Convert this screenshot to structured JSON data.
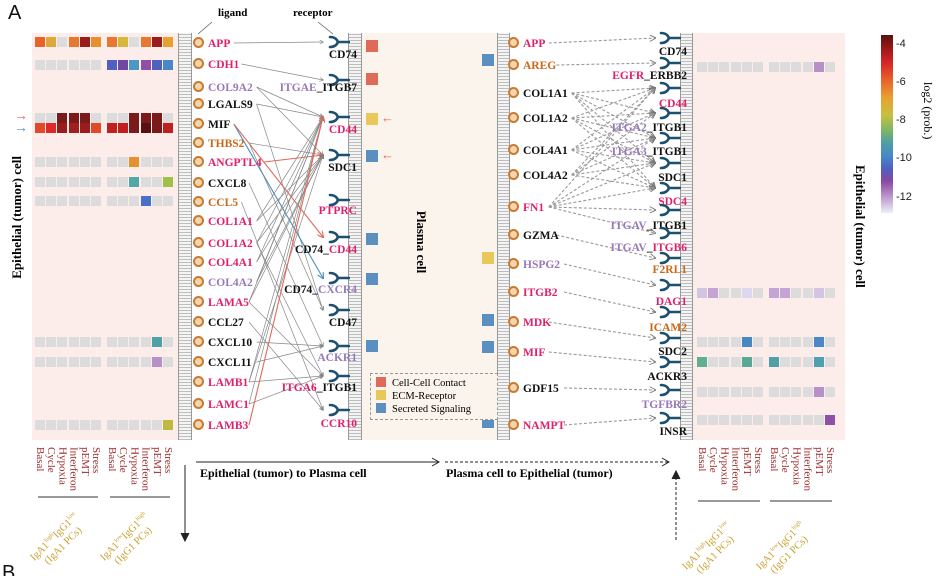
{
  "panel_labels": {
    "a": "A",
    "b": "B"
  },
  "headers": {
    "ligand": "ligand",
    "receptor": "receptor"
  },
  "titles": {
    "left_cell": "Epithelial (tumor) cell",
    "right_cell": "Epithelial (tumor) cell",
    "plasma": "Plasma cell",
    "dir_left": "Epithelial (tumor)  to  Plasma cell",
    "dir_right": "Plasma cell  to  Epithelial (tumor)"
  },
  "colors": {
    "red": "#e0206a",
    "purple": "#9878b8",
    "orange": "#c86818",
    "black": "#111111",
    "contact": "#e06a58",
    "ecm": "#e8c85a",
    "secreted": "#5a8fc0",
    "receptor_icon": "#1d4f6e"
  },
  "legend": [
    {
      "label": "Cell-Cell Contact",
      "color": "#e06a58"
    },
    {
      "label": "ECM-Receptor",
      "color": "#e8c85a"
    },
    {
      "label": "Secreted Signaling",
      "color": "#5a8fc0"
    }
  ],
  "colorbar": {
    "title": "log2 (prob.)",
    "ticks": [
      "-4",
      "-6",
      "-8",
      "-10",
      "-12"
    ],
    "range": [
      -3.5,
      -12.8
    ]
  },
  "columns": [
    "Basal",
    "Cycle",
    "Hypoxia",
    "Interferon",
    "pEMT",
    "Stress"
  ],
  "groups": [
    {
      "main": "IgA1",
      "sup1": "high",
      "mid": "IgG1",
      "sup2": "low",
      "sub": "(IgA1 PCs)"
    },
    {
      "main": "IgA1",
      "sup1": "low",
      "mid": "IgG1",
      "sup2": "high",
      "sub": "(IgG1 PCs)"
    }
  ],
  "left": {
    "ligands": [
      {
        "t": "APP",
        "c": "red"
      },
      {
        "t": "CDH1",
        "c": "red"
      },
      {
        "t": "COL9A2",
        "c": "purple"
      },
      {
        "t": "LGALS9",
        "c": "black"
      },
      {
        "t": "MIF",
        "c": "black"
      },
      {
        "t": "THBS2",
        "c": "orange"
      },
      {
        "t": "ANGPTL4",
        "c": "red"
      },
      {
        "t": "CXCL8",
        "c": "black"
      },
      {
        "t": "CCL5",
        "c": "orange"
      },
      {
        "t": "COL1A1",
        "c": "red"
      },
      {
        "t": "COL1A2",
        "c": "red"
      },
      {
        "t": "COL4A1",
        "c": "red"
      },
      {
        "t": "COL4A2",
        "c": "purple"
      },
      {
        "t": "LAMA5",
        "c": "red"
      },
      {
        "t": "CCL27",
        "c": "black"
      },
      {
        "t": "CXCL10",
        "c": "black"
      },
      {
        "t": "CXCL11",
        "c": "black"
      },
      {
        "t": "LAMB1",
        "c": "red"
      },
      {
        "t": "LAMC1",
        "c": "red"
      },
      {
        "t": "LAMB3",
        "c": "red"
      }
    ],
    "receptors": [
      [
        {
          "t": "CD74",
          "c": "black"
        }
      ],
      [
        {
          "t": "ITGAE",
          "c": "purple"
        },
        {
          "t": "_ITGB7",
          "c": "black"
        }
      ],
      [
        {
          "t": "CD44",
          "c": "red"
        }
      ],
      [
        {
          "t": "SDC1",
          "c": "black"
        }
      ],
      [
        {
          "t": "PTPRC",
          "c": "red"
        }
      ],
      [
        {
          "t": "CD74_",
          "c": "black"
        },
        {
          "t": "CD44",
          "c": "red"
        }
      ],
      [
        {
          "t": "CD74_",
          "c": "black"
        },
        {
          "t": "CXCR4",
          "c": "purple"
        }
      ],
      [
        {
          "t": "CD47",
          "c": "black"
        }
      ],
      [
        {
          "t": "ACKR1",
          "c": "purple"
        }
      ],
      [
        {
          "t": "ITGA6",
          "c": "red"
        },
        {
          "t": "_ITGB1",
          "c": "black"
        }
      ],
      [
        {
          "t": "CCR10",
          "c": "red"
        }
      ]
    ],
    "links": [
      [
        0,
        0,
        "g"
      ],
      [
        1,
        1,
        "g"
      ],
      [
        2,
        2,
        "g"
      ],
      [
        2,
        3,
        "g"
      ],
      [
        3,
        2,
        "g"
      ],
      [
        3,
        7,
        "g"
      ],
      [
        4,
        6,
        "b"
      ],
      [
        4,
        5,
        "r"
      ],
      [
        5,
        3,
        "g"
      ],
      [
        5,
        7,
        "g"
      ],
      [
        6,
        3,
        "r"
      ],
      [
        7,
        8,
        "g"
      ],
      [
        8,
        10,
        "g"
      ],
      [
        9,
        2,
        "g"
      ],
      [
        9,
        3,
        "g"
      ],
      [
        10,
        2,
        "g"
      ],
      [
        10,
        3,
        "g"
      ],
      [
        10,
        9,
        "g"
      ],
      [
        11,
        2,
        "g"
      ],
      [
        11,
        3,
        "g"
      ],
      [
        12,
        2,
        "g"
      ],
      [
        12,
        3,
        "g"
      ],
      [
        13,
        2,
        "g"
      ],
      [
        13,
        3,
        "g"
      ],
      [
        13,
        9,
        "g"
      ],
      [
        14,
        10,
        "g"
      ],
      [
        15,
        8,
        "g"
      ],
      [
        16,
        8,
        "g"
      ],
      [
        17,
        2,
        "g"
      ],
      [
        17,
        3,
        "g"
      ],
      [
        17,
        9,
        "g"
      ],
      [
        18,
        2,
        "g"
      ],
      [
        18,
        9,
        "g"
      ],
      [
        19,
        2,
        "r"
      ]
    ],
    "plasma_types": [
      "contact",
      "contact",
      "ecm",
      "secreted",
      "secreted",
      "secreted",
      "secreted"
    ],
    "highlight_arrows": 2
  },
  "right": {
    "ligands": [
      {
        "t": "APP",
        "c": "red"
      },
      {
        "t": "AREG",
        "c": "orange"
      },
      {
        "t": "COL1A1",
        "c": "black"
      },
      {
        "t": "COL1A2",
        "c": "black"
      },
      {
        "t": "COL4A1",
        "c": "black"
      },
      {
        "t": "COL4A2",
        "c": "black"
      },
      {
        "t": "FN1",
        "c": "red"
      },
      {
        "t": "GZMA",
        "c": "black"
      },
      {
        "t": "HSPG2",
        "c": "purple"
      },
      {
        "t": "ITGB2",
        "c": "red"
      },
      {
        "t": "MDK",
        "c": "red"
      },
      {
        "t": "MIF",
        "c": "red"
      },
      {
        "t": "GDF15",
        "c": "black"
      },
      {
        "t": "NAMPT",
        "c": "red"
      }
    ],
    "receptors": [
      [
        {
          "t": "CD74",
          "c": "black"
        }
      ],
      [
        {
          "t": "EGFR",
          "c": "red"
        },
        {
          "t": "_ERBB2",
          "c": "black"
        }
      ],
      [
        {
          "t": "CD44",
          "c": "red"
        }
      ],
      [
        {
          "t": "ITGA2",
          "c": "purple"
        },
        {
          "t": "_ITGB1",
          "c": "black"
        }
      ],
      [
        {
          "t": "ITGA3",
          "c": "purple"
        },
        {
          "t": "_ITGB1",
          "c": "black"
        }
      ],
      [
        {
          "t": "SDC1",
          "c": "black"
        }
      ],
      [
        {
          "t": "SDC4",
          "c": "red"
        }
      ],
      [
        {
          "t": "ITGAV",
          "c": "purple"
        },
        {
          "t": "_ITGB1",
          "c": "black"
        }
      ],
      [
        {
          "t": "ITGAV",
          "c": "purple"
        },
        {
          "t": "_",
          "c": "black"
        },
        {
          "t": "ITGB6",
          "c": "red"
        }
      ],
      [
        {
          "t": "F2RL1",
          "c": "orange"
        }
      ],
      [
        {
          "t": "DAG1",
          "c": "red"
        }
      ],
      [
        {
          "t": "ICAM2",
          "c": "orange"
        }
      ],
      [
        {
          "t": "SDC2",
          "c": "black"
        }
      ],
      [
        {
          "t": "ACKR3",
          "c": "black"
        }
      ],
      [
        {
          "t": "TGFBR2",
          "c": "purple"
        }
      ],
      [
        {
          "t": "INSR",
          "c": "black"
        }
      ]
    ],
    "links": [
      [
        0,
        0
      ],
      [
        1,
        1
      ],
      [
        2,
        2
      ],
      [
        2,
        3
      ],
      [
        2,
        4
      ],
      [
        2,
        5
      ],
      [
        2,
        6
      ],
      [
        3,
        2
      ],
      [
        3,
        3
      ],
      [
        3,
        4
      ],
      [
        3,
        5
      ],
      [
        3,
        6
      ],
      [
        4,
        2
      ],
      [
        4,
        3
      ],
      [
        4,
        4
      ],
      [
        4,
        5
      ],
      [
        4,
        6
      ],
      [
        5,
        2
      ],
      [
        5,
        3
      ],
      [
        5,
        4
      ],
      [
        5,
        5
      ],
      [
        5,
        6
      ],
      [
        6,
        2
      ],
      [
        6,
        4
      ],
      [
        6,
        5
      ],
      [
        6,
        6
      ],
      [
        6,
        7
      ],
      [
        6,
        8
      ],
      [
        7,
        9
      ],
      [
        8,
        10
      ],
      [
        9,
        11
      ],
      [
        10,
        12
      ],
      [
        11,
        13
      ],
      [
        12,
        14
      ],
      [
        13,
        15
      ]
    ],
    "plasma_types": [
      "secreted",
      "ecm",
      "secreted",
      "secreted",
      "secreted",
      "secreted"
    ]
  },
  "heatmap_left": [
    {
      "g1": [
        "#e8622a",
        "#e0a83a",
        "",
        "#e87830",
        "#9b1c1c",
        "#e8902e"
      ],
      "g2": [
        "#e87830",
        "#d8b83a",
        "",
        "#e87830",
        "#9b1c1c",
        "#e8a030"
      ]
    },
    {
      "g1": [
        "",
        "",
        "",
        "",
        "",
        ""
      ],
      "g2": [
        "#5060c0",
        "#7048a0",
        "#4898c8",
        "#9050a8",
        "#5060c0",
        "#4888c8"
      ]
    },
    {
      "g1": [
        "",
        "",
        "#7a1a1a",
        "#7a1a1a",
        "#7a1a1a",
        ""
      ],
      "g2": [
        "",
        "",
        "#7a1a1a",
        "#7a1a1a",
        "#7a1a1a",
        ""
      ]
    },
    {
      "g1": [
        "#e04a28",
        "#e02828",
        "#9a1c1c",
        "#a02020",
        "#9a1c1c",
        "#e04a28"
      ],
      "g2": [
        "#c02020",
        "#c02020",
        "#7a1a1a",
        "#5a1010",
        "#7a1a1a",
        "#c02020"
      ]
    },
    {
      "g1": [
        "",
        "",
        "",
        "",
        "",
        ""
      ],
      "g2": [
        "",
        "",
        "#e8902e",
        "",
        "",
        ""
      ]
    },
    {
      "g1": [
        "",
        "",
        "",
        "",
        "",
        ""
      ],
      "g2": [
        "",
        "",
        "#50a8a8",
        "",
        "",
        "#a0c048"
      ]
    },
    {
      "g1": [
        "",
        "",
        "",
        "",
        "",
        ""
      ],
      "g2": [
        "",
        "",
        "",
        "#4870c8",
        "",
        ""
      ]
    },
    {
      "g1": [
        "",
        "",
        "",
        "",
        "",
        ""
      ],
      "g2": [
        "",
        "",
        "",
        "",
        "#50a0a8",
        ""
      ]
    },
    {
      "g1": [
        "",
        "",
        "",
        "",
        "",
        ""
      ],
      "g2": [
        "",
        "",
        "",
        "",
        "#b890c8",
        ""
      ]
    },
    {
      "g1": [
        "",
        "",
        "",
        "",
        "",
        ""
      ],
      "g2": [
        "",
        "",
        "",
        "",
        "",
        "#c0b840"
      ]
    }
  ],
  "heatmap_right": [
    {
      "g1": [
        "",
        "",
        "",
        "",
        "",
        ""
      ],
      "g2": [
        "",
        "",
        "",
        "",
        "#b890c8",
        ""
      ]
    },
    {
      "g1": [
        "#d4c4e4",
        "#c4a4d4",
        "",
        "",
        "#dcd8ee",
        ""
      ],
      "g2": [
        "#c4a4d4",
        "#c4a4d4",
        "",
        "",
        "#d4c4e4",
        ""
      ]
    },
    {
      "g1": [
        "",
        "",
        "",
        "",
        "#4888c0",
        ""
      ],
      "g2": [
        "",
        "",
        "",
        "",
        "#4888c8",
        ""
      ]
    },
    {
      "g1": [
        "#60b090",
        "",
        "",
        "",
        "#58a898",
        ""
      ],
      "g2": [
        "#50a0a8",
        "",
        "",
        "",
        "#50a0b0",
        ""
      ]
    },
    {
      "g1": [
        "",
        "",
        "",
        "",
        "",
        ""
      ],
      "g2": [
        "",
        "",
        "",
        "",
        "#b890c8",
        ""
      ]
    },
    {
      "g1": [
        "",
        "",
        "",
        "",
        "",
        ""
      ],
      "g2": [
        "",
        "",
        "",
        "",
        "",
        "#9050a8"
      ]
    }
  ]
}
